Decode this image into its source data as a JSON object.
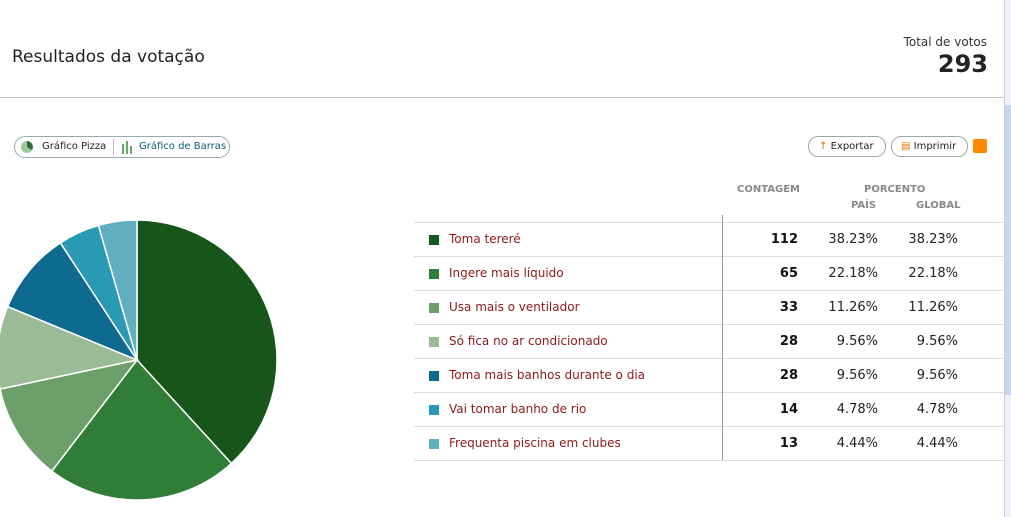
{
  "header": {
    "title": "Resultados da votação",
    "total_label": "Total de votos",
    "total": 293
  },
  "tabs": [
    "Gráfico Pizza",
    "Gráfico de Barras"
  ],
  "actions": [
    "Exportar",
    "Imprimir"
  ],
  "table": {
    "columns": {
      "count": "CONTAGEM",
      "percent": "PORCENTO",
      "country": "PAÍS",
      "global": "GLOBAL"
    },
    "rows": [
      {
        "label": "Toma tereré",
        "color": "#17561a",
        "count": 112,
        "country": "38.23%",
        "global": "38.23%"
      },
      {
        "label": "Ingere mais líquido",
        "color": "#2f7d37",
        "count": 65,
        "country": "22.18%",
        "global": "22.18%"
      },
      {
        "label": "Usa mais o ventilador",
        "color": "#6c9f69",
        "count": 33,
        "country": "11.26%",
        "global": "11.26%"
      },
      {
        "label": "Só fica no ar condicionado",
        "color": "#9bbb97",
        "count": 28,
        "country": "9.56%",
        "global": "9.56%"
      },
      {
        "label": "Toma mais banhos durante o dia",
        "color": "#0e6a8e",
        "count": 28,
        "country": "9.56%",
        "global": "9.56%"
      },
      {
        "label": "Vai tomar banho de rio",
        "color": "#2a99b4",
        "count": 14,
        "country": "4.78%",
        "global": "4.78%"
      },
      {
        "label": "Frequenta piscina em clubes",
        "color": "#62aec1",
        "count": 13,
        "country": "4.44%",
        "global": "4.44%"
      }
    ]
  }
}
